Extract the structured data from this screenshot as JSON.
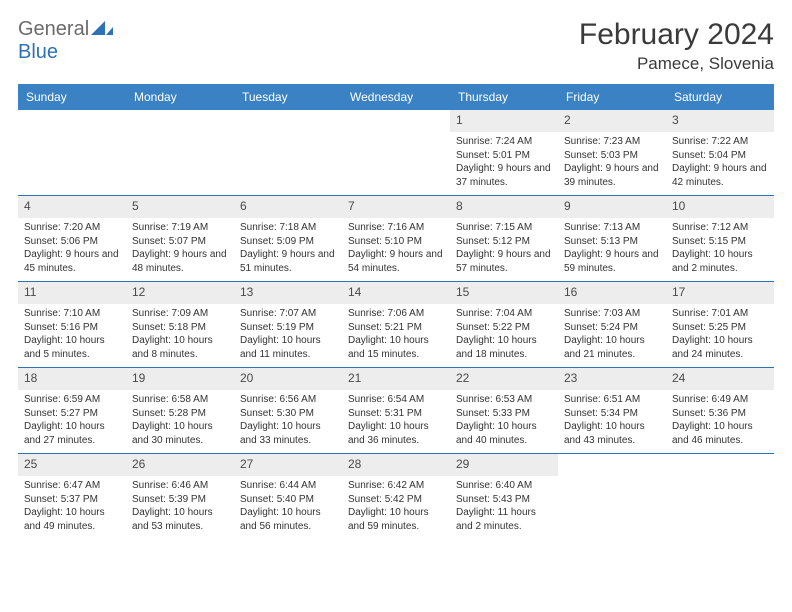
{
  "logo": {
    "word1": "General",
    "word2": "Blue"
  },
  "title": "February 2024",
  "location": "Pamece, Slovenia",
  "colors": {
    "header_bg": "#3b82c4",
    "header_text": "#ffffff",
    "divider": "#2f71b8",
    "shade_bg": "#ededed",
    "body_text": "#333333",
    "logo_gray": "#6b6b6b",
    "logo_blue": "#2f71b8"
  },
  "day_names": [
    "Sunday",
    "Monday",
    "Tuesday",
    "Wednesday",
    "Thursday",
    "Friday",
    "Saturday"
  ],
  "weeks": [
    [
      {
        "day": "",
        "sunrise": "",
        "sunset": "",
        "daylight": ""
      },
      {
        "day": "",
        "sunrise": "",
        "sunset": "",
        "daylight": ""
      },
      {
        "day": "",
        "sunrise": "",
        "sunset": "",
        "daylight": ""
      },
      {
        "day": "",
        "sunrise": "",
        "sunset": "",
        "daylight": ""
      },
      {
        "day": "1",
        "sunrise": "Sunrise: 7:24 AM",
        "sunset": "Sunset: 5:01 PM",
        "daylight": "Daylight: 9 hours and 37 minutes."
      },
      {
        "day": "2",
        "sunrise": "Sunrise: 7:23 AM",
        "sunset": "Sunset: 5:03 PM",
        "daylight": "Daylight: 9 hours and 39 minutes."
      },
      {
        "day": "3",
        "sunrise": "Sunrise: 7:22 AM",
        "sunset": "Sunset: 5:04 PM",
        "daylight": "Daylight: 9 hours and 42 minutes."
      }
    ],
    [
      {
        "day": "4",
        "sunrise": "Sunrise: 7:20 AM",
        "sunset": "Sunset: 5:06 PM",
        "daylight": "Daylight: 9 hours and 45 minutes."
      },
      {
        "day": "5",
        "sunrise": "Sunrise: 7:19 AM",
        "sunset": "Sunset: 5:07 PM",
        "daylight": "Daylight: 9 hours and 48 minutes."
      },
      {
        "day": "6",
        "sunrise": "Sunrise: 7:18 AM",
        "sunset": "Sunset: 5:09 PM",
        "daylight": "Daylight: 9 hours and 51 minutes."
      },
      {
        "day": "7",
        "sunrise": "Sunrise: 7:16 AM",
        "sunset": "Sunset: 5:10 PM",
        "daylight": "Daylight: 9 hours and 54 minutes."
      },
      {
        "day": "8",
        "sunrise": "Sunrise: 7:15 AM",
        "sunset": "Sunset: 5:12 PM",
        "daylight": "Daylight: 9 hours and 57 minutes."
      },
      {
        "day": "9",
        "sunrise": "Sunrise: 7:13 AM",
        "sunset": "Sunset: 5:13 PM",
        "daylight": "Daylight: 9 hours and 59 minutes."
      },
      {
        "day": "10",
        "sunrise": "Sunrise: 7:12 AM",
        "sunset": "Sunset: 5:15 PM",
        "daylight": "Daylight: 10 hours and 2 minutes."
      }
    ],
    [
      {
        "day": "11",
        "sunrise": "Sunrise: 7:10 AM",
        "sunset": "Sunset: 5:16 PM",
        "daylight": "Daylight: 10 hours and 5 minutes."
      },
      {
        "day": "12",
        "sunrise": "Sunrise: 7:09 AM",
        "sunset": "Sunset: 5:18 PM",
        "daylight": "Daylight: 10 hours and 8 minutes."
      },
      {
        "day": "13",
        "sunrise": "Sunrise: 7:07 AM",
        "sunset": "Sunset: 5:19 PM",
        "daylight": "Daylight: 10 hours and 11 minutes."
      },
      {
        "day": "14",
        "sunrise": "Sunrise: 7:06 AM",
        "sunset": "Sunset: 5:21 PM",
        "daylight": "Daylight: 10 hours and 15 minutes."
      },
      {
        "day": "15",
        "sunrise": "Sunrise: 7:04 AM",
        "sunset": "Sunset: 5:22 PM",
        "daylight": "Daylight: 10 hours and 18 minutes."
      },
      {
        "day": "16",
        "sunrise": "Sunrise: 7:03 AM",
        "sunset": "Sunset: 5:24 PM",
        "daylight": "Daylight: 10 hours and 21 minutes."
      },
      {
        "day": "17",
        "sunrise": "Sunrise: 7:01 AM",
        "sunset": "Sunset: 5:25 PM",
        "daylight": "Daylight: 10 hours and 24 minutes."
      }
    ],
    [
      {
        "day": "18",
        "sunrise": "Sunrise: 6:59 AM",
        "sunset": "Sunset: 5:27 PM",
        "daylight": "Daylight: 10 hours and 27 minutes."
      },
      {
        "day": "19",
        "sunrise": "Sunrise: 6:58 AM",
        "sunset": "Sunset: 5:28 PM",
        "daylight": "Daylight: 10 hours and 30 minutes."
      },
      {
        "day": "20",
        "sunrise": "Sunrise: 6:56 AM",
        "sunset": "Sunset: 5:30 PM",
        "daylight": "Daylight: 10 hours and 33 minutes."
      },
      {
        "day": "21",
        "sunrise": "Sunrise: 6:54 AM",
        "sunset": "Sunset: 5:31 PM",
        "daylight": "Daylight: 10 hours and 36 minutes."
      },
      {
        "day": "22",
        "sunrise": "Sunrise: 6:53 AM",
        "sunset": "Sunset: 5:33 PM",
        "daylight": "Daylight: 10 hours and 40 minutes."
      },
      {
        "day": "23",
        "sunrise": "Sunrise: 6:51 AM",
        "sunset": "Sunset: 5:34 PM",
        "daylight": "Daylight: 10 hours and 43 minutes."
      },
      {
        "day": "24",
        "sunrise": "Sunrise: 6:49 AM",
        "sunset": "Sunset: 5:36 PM",
        "daylight": "Daylight: 10 hours and 46 minutes."
      }
    ],
    [
      {
        "day": "25",
        "sunrise": "Sunrise: 6:47 AM",
        "sunset": "Sunset: 5:37 PM",
        "daylight": "Daylight: 10 hours and 49 minutes."
      },
      {
        "day": "26",
        "sunrise": "Sunrise: 6:46 AM",
        "sunset": "Sunset: 5:39 PM",
        "daylight": "Daylight: 10 hours and 53 minutes."
      },
      {
        "day": "27",
        "sunrise": "Sunrise: 6:44 AM",
        "sunset": "Sunset: 5:40 PM",
        "daylight": "Daylight: 10 hours and 56 minutes."
      },
      {
        "day": "28",
        "sunrise": "Sunrise: 6:42 AM",
        "sunset": "Sunset: 5:42 PM",
        "daylight": "Daylight: 10 hours and 59 minutes."
      },
      {
        "day": "29",
        "sunrise": "Sunrise: 6:40 AM",
        "sunset": "Sunset: 5:43 PM",
        "daylight": "Daylight: 11 hours and 2 minutes."
      },
      {
        "day": "",
        "sunrise": "",
        "sunset": "",
        "daylight": ""
      },
      {
        "day": "",
        "sunrise": "",
        "sunset": "",
        "daylight": ""
      }
    ]
  ]
}
